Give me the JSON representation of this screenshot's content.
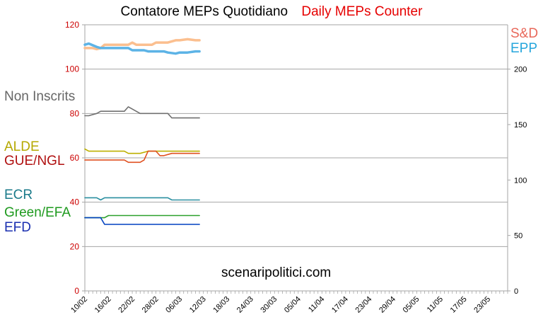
{
  "title_it": "Contatore MEPs Quotidiano",
  "title_en": "Daily MEPs Counter",
  "watermark": "scenaripolitici.com",
  "colors": {
    "title_it": "#000000",
    "title_en": "#e60000",
    "left_axis_ticks": "#cc0000",
    "grid": "#a6a6a6"
  },
  "chart_data": {
    "type": "line",
    "x_type": "date",
    "x_tick_labels": [
      "10/02",
      "16/02",
      "22/02",
      "28/02",
      "06/03",
      "12/03",
      "18/03",
      "24/03",
      "30/03",
      "05/04",
      "11/04",
      "17/04",
      "23/04",
      "29/04",
      "05/05",
      "11/05",
      "17/05",
      "23/05"
    ],
    "xlim": [
      "10/02",
      "28/05"
    ],
    "left_axis": {
      "ylim": [
        0,
        120
      ],
      "ticks": [
        0,
        20,
        40,
        60,
        80,
        100,
        120
      ]
    },
    "right_axis": {
      "ylim": [
        0,
        240
      ],
      "ticks": [
        0,
        50,
        100,
        150,
        200
      ]
    },
    "grid": true,
    "legend": "left side and top-right, colored text labels",
    "series": [
      {
        "name": "S&D",
        "axis": "right",
        "color": "#fbbf8f",
        "x": [
          "10/02",
          "12/02",
          "13/02",
          "14/02",
          "15/02",
          "21/02",
          "22/02",
          "23/02",
          "25/02",
          "27/02",
          "28/02",
          "03/03",
          "05/03",
          "06/03",
          "08/03",
          "10/03",
          "11/03"
        ],
        "values": [
          219,
          219,
          218,
          219,
          222,
          222,
          224,
          222,
          222,
          222,
          224,
          224,
          226,
          226,
          227,
          226,
          226
        ]
      },
      {
        "name": "EPP",
        "axis": "right",
        "color": "#5cb3e6",
        "x": [
          "10/02",
          "11/02",
          "13/02",
          "14/02",
          "21/02",
          "22/02",
          "25/02",
          "26/02",
          "02/03",
          "03/03",
          "05/03",
          "06/03",
          "08/03",
          "10/03",
          "11/03"
        ],
        "values": [
          222,
          223,
          220,
          219,
          219,
          217,
          217,
          216,
          216,
          215,
          214,
          215,
          215,
          216,
          216
        ]
      },
      {
        "name": "Non Inscrits",
        "color": "#707070",
        "x": [
          "10/02",
          "11/02",
          "13/02",
          "14/02",
          "20/02",
          "21/02",
          "22/02",
          "24/02",
          "02/03",
          "03/03",
          "04/03",
          "11/03"
        ],
        "values": [
          79,
          79,
          80,
          81,
          81,
          83,
          82,
          80,
          80,
          80,
          78,
          78
        ]
      },
      {
        "name": "ALDE",
        "color": "#bdb000",
        "x": [
          "10/02",
          "11/02",
          "20/02",
          "21/02",
          "24/02",
          "26/02",
          "11/03"
        ],
        "values": [
          64,
          63,
          63,
          62,
          62,
          63,
          63
        ]
      },
      {
        "name": "GUE/NGL",
        "color": "#e05020",
        "x": [
          "10/02",
          "20/02",
          "21/02",
          "24/02",
          "25/02",
          "26/02",
          "28/02",
          "01/03",
          "02/03",
          "04/03",
          "11/03"
        ],
        "values": [
          59,
          59,
          58,
          58,
          59,
          63,
          63,
          61,
          61,
          62,
          62
        ]
      },
      {
        "name": "ECR",
        "color": "#2a8fa0",
        "x": [
          "10/02",
          "13/02",
          "14/02",
          "15/02",
          "02/03",
          "03/03",
          "04/03",
          "11/03"
        ],
        "values": [
          42,
          42,
          41,
          42,
          42,
          42,
          41,
          41
        ]
      },
      {
        "name": "Green/EFA",
        "color": "#2ca02c",
        "x": [
          "10/02",
          "14/02",
          "15/02",
          "16/02",
          "11/03"
        ],
        "values": [
          33,
          33,
          33,
          34,
          34
        ]
      },
      {
        "name": "EFD",
        "color": "#0040c0",
        "x": [
          "10/02",
          "14/02",
          "15/02",
          "11/03"
        ],
        "values": [
          33,
          33,
          30,
          30
        ]
      }
    ]
  },
  "labels": [
    {
      "id": "sd",
      "text": "S&D",
      "color": "#e8685a"
    },
    {
      "id": "epp",
      "text": "EPP",
      "color": "#26a6dc"
    },
    {
      "id": "ni",
      "text": "Non Inscrits",
      "color": "#666666"
    },
    {
      "id": "alde",
      "text": "ALDE",
      "color": "#b5a800"
    },
    {
      "id": "gue",
      "text": "GUE/NGL",
      "color": "#b01010"
    },
    {
      "id": "ecr",
      "text": "ECR",
      "color": "#1a7a8a"
    },
    {
      "id": "greens",
      "text": "Green/EFA",
      "color": "#1e9a1e"
    },
    {
      "id": "efd",
      "text": "EFD",
      "color": "#1a2fb0"
    }
  ]
}
